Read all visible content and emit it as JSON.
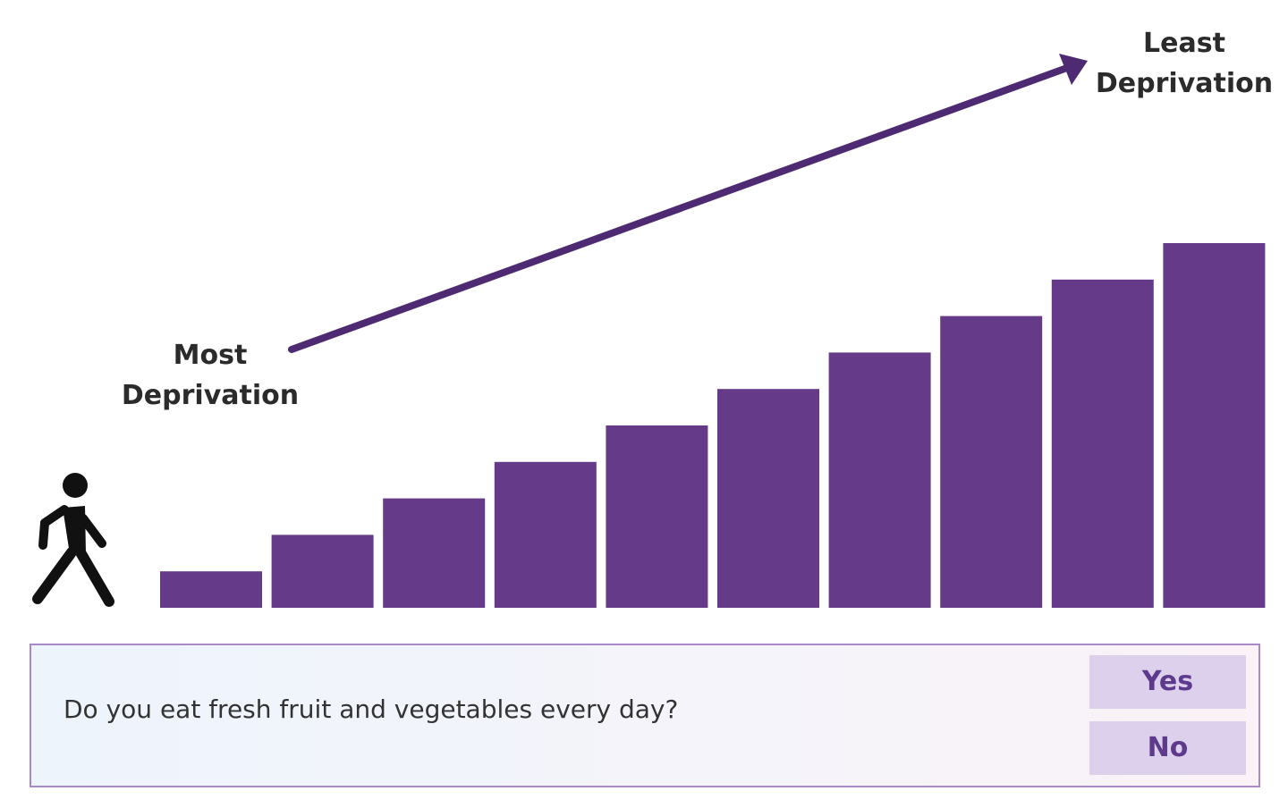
{
  "staircase": {
    "step_count": 10,
    "step_levels": [
      1,
      2,
      3,
      4,
      5,
      6,
      7,
      8,
      9,
      10
    ],
    "bar_color": "#653b89",
    "arrow_color": "#4d2a72",
    "most_label": [
      "Most",
      "Deprivation"
    ],
    "least_label": [
      "Least",
      "Deprivation"
    ],
    "walker_icon": "walking-person-icon"
  },
  "question": {
    "text": "Do you eat fresh fruit and vegetables every day?",
    "yes_label": "Yes",
    "no_label": "No"
  },
  "colors": {
    "panel_border": "#a98ac8",
    "button_bg": "#dcd0ec",
    "button_text": "#5e3a8c"
  }
}
